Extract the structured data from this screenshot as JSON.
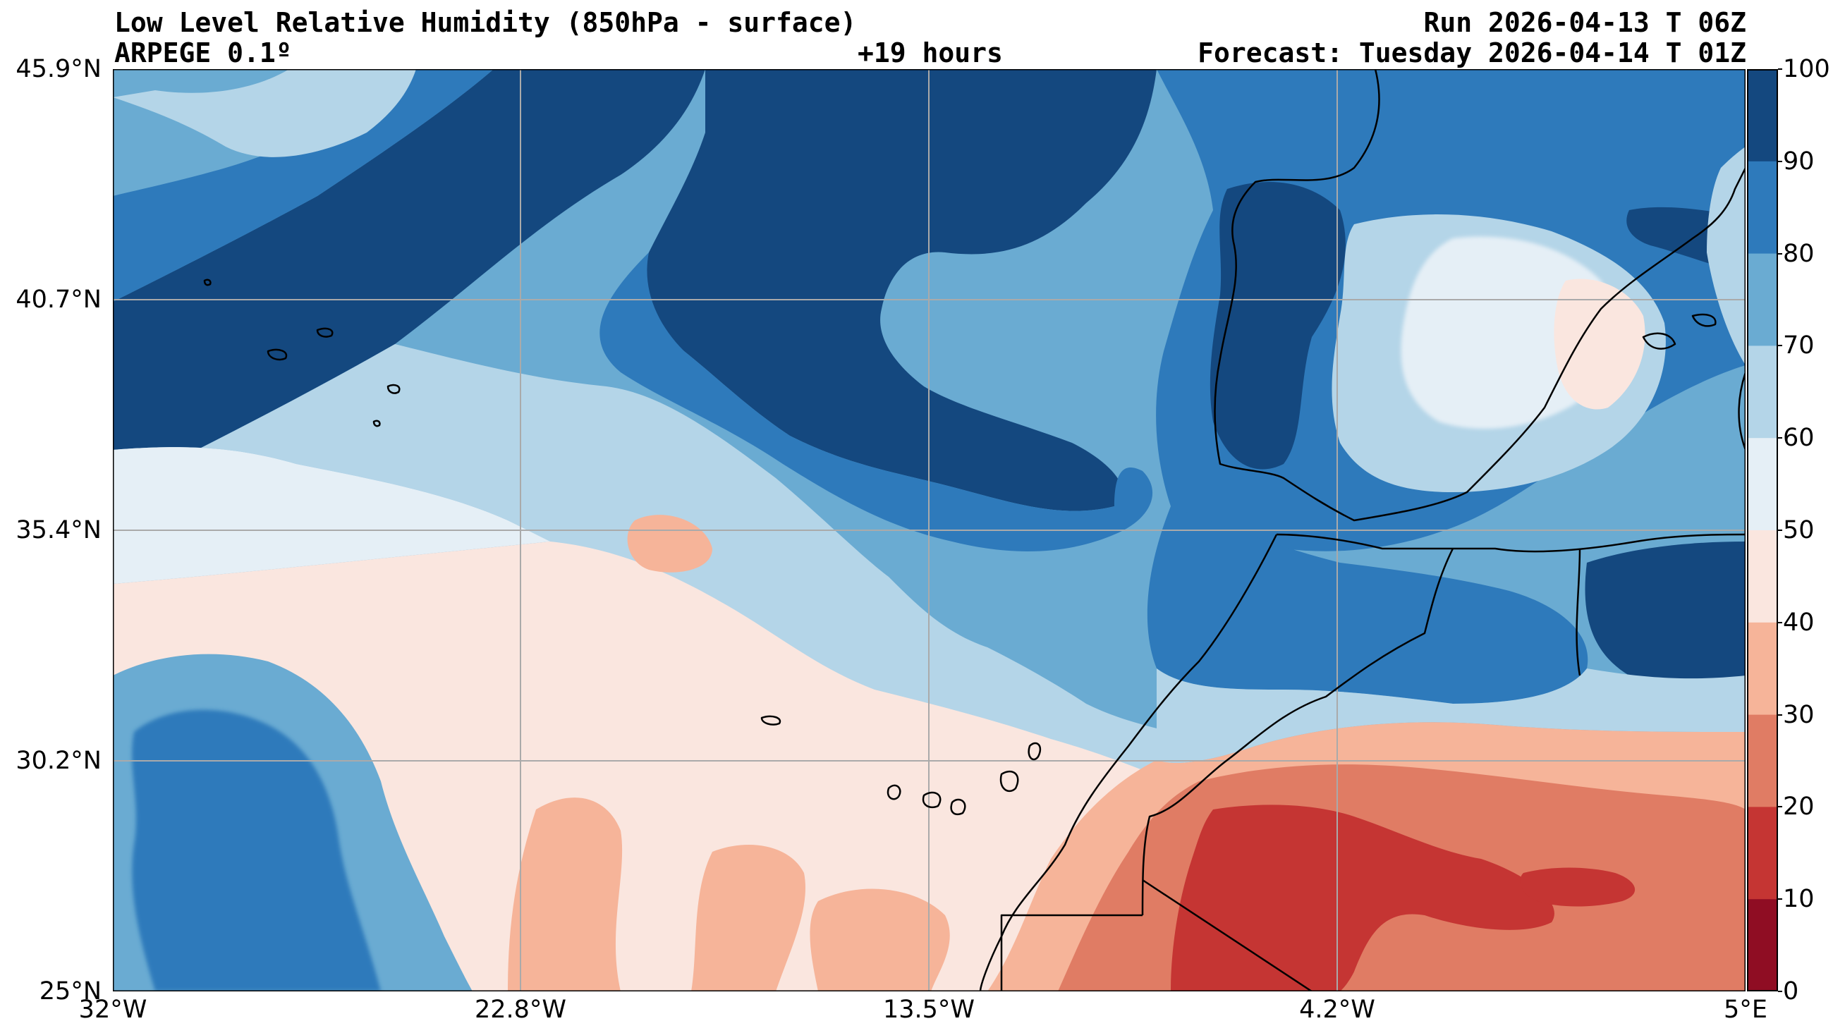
{
  "header": {
    "title": "Low Level Relative Humidity (850hPa - surface)",
    "model": "ARPEGE 0.1º",
    "lead": "+19 hours",
    "run": "Run 2026-04-13 T 06Z",
    "forecast": "Forecast: Tuesday 2026-04-14 T 01Z"
  },
  "axes": {
    "lat_labels": [
      "45.9°N",
      "40.7°N",
      "35.4°N",
      "30.2°N",
      "25°N"
    ],
    "lon_labels": [
      "32°W",
      "22.8°W",
      "13.5°W",
      "4.2°W",
      "5°E"
    ]
  },
  "colorbar": {
    "ticks": [
      "100",
      "90",
      "80",
      "70",
      "60",
      "50",
      "40",
      "30",
      "20",
      "10",
      "0"
    ],
    "colors": [
      "#14487f",
      "#2e7abb",
      "#6aabd2",
      "#b4d5e8",
      "#e5eff6",
      "#fae6df",
      "#f6b499",
      "#e07c64",
      "#c53533",
      "#8f0d23"
    ]
  },
  "map": {
    "extent": {
      "lon_min": -32,
      "lon_max": 5,
      "lat_min": 25,
      "lat_max": 45.9
    },
    "variable": "relative humidity (%)",
    "regions": [
      "atlantic-ocean",
      "iberian-peninsula",
      "morocco",
      "algeria",
      "western-sahara",
      "canary-islands",
      "azores",
      "madeira",
      "balearic-islands"
    ],
    "colors": {
      "dark_blue": "#14487f",
      "mid_blue": "#2e7abb",
      "light_blue": "#6aabd2",
      "pale_blue": "#b4d5e8",
      "very_pale": "#e5eff6",
      "pale_pink": "#fae6df",
      "salmon": "#f6b499",
      "orange_red": "#e07c64",
      "red": "#c53533"
    }
  }
}
